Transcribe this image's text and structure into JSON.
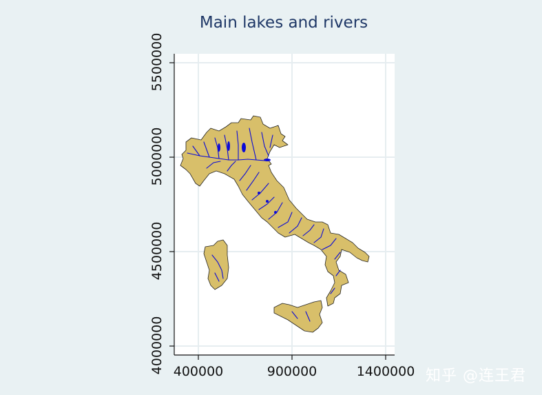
{
  "title": "Main lakes and rivers",
  "watermark": "知乎 @连王君",
  "colors": {
    "background": "#e9f1f3",
    "plot_area": "#ffffff",
    "land": "#d8bf6a",
    "coastline": "#222222",
    "rivers": "#0a0ad8",
    "grid": "#e6edf0"
  },
  "chart_data": {
    "type": "map",
    "xlim": [
      330000,
      1420000
    ],
    "ylim": [
      3950000,
      5560000
    ],
    "x_ticks": [
      400000,
      900000,
      1400000
    ],
    "x_tick_labels": [
      "400000",
      "900000",
      "1400000"
    ],
    "y_ticks": [
      4000000,
      4500000,
      5000000,
      5500000
    ],
    "y_tick_labels": [
      "4000000",
      "4500000",
      "5000000",
      "5500000"
    ],
    "grid": true,
    "layers": [
      "land",
      "rivers",
      "lakes"
    ]
  }
}
